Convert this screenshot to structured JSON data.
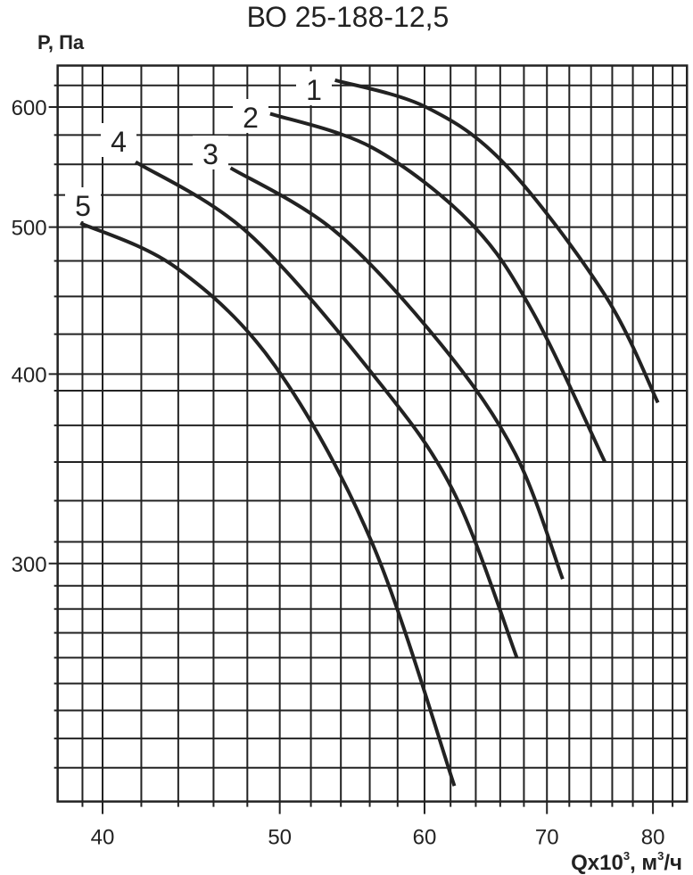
{
  "chart_data": {
    "type": "line",
    "title": "ВО 25-188-12,5",
    "xlabel": "Qx10³, м³/ч",
    "xlabel_parts": {
      "base": "Qx10",
      "exp1": "3",
      "mid": ", м",
      "exp2": "3",
      "tail": "/ч"
    },
    "ylabel": "P, Па",
    "x_scale": "log",
    "y_scale": "log",
    "xlim": [
      37.8,
      83.5
    ],
    "ylim": [
      209,
      639
    ],
    "x_ticks": [
      40,
      50,
      60,
      70,
      80
    ],
    "x_tick_labels": [
      "40",
      "50",
      "60",
      "70",
      "80"
    ],
    "y_ticks": [
      300,
      400,
      500,
      600
    ],
    "y_tick_labels": [
      "300",
      "400",
      "500",
      "600"
    ],
    "x_grid": [
      39,
      40,
      42,
      44,
      46,
      48,
      50,
      52,
      54,
      56,
      58,
      60,
      62,
      64,
      66,
      68,
      70,
      72,
      74,
      76,
      78,
      80,
      82
    ],
    "y_grid": [
      220,
      230,
      240,
      250,
      260,
      270,
      280,
      290,
      300,
      310,
      330,
      350,
      370,
      390,
      400,
      425,
      450,
      475,
      500,
      525,
      550,
      575,
      600,
      620
    ],
    "grid": true,
    "line_color": "#222222",
    "series": [
      {
        "name": "1",
        "x": [
          53.6,
          60.1,
          66.5,
          75.3,
          80.5
        ],
        "y": [
          625,
          600,
          549,
          451,
          383
        ]
      },
      {
        "name": "2",
        "x": [
          49.4,
          56.2,
          63.6,
          68.8,
          75.3
        ],
        "y": [
          594,
          564,
          503,
          439,
          350
        ]
      },
      {
        "name": "3",
        "x": [
          47.0,
          53.7,
          61.5,
          67.3,
          71.4
        ],
        "y": [
          547,
          496,
          416,
          354,
          293
        ]
      },
      {
        "name": "4",
        "x": [
          41.7,
          48.0,
          56.2,
          62.2,
          67.4
        ],
        "y": [
          552,
          496,
          400,
          335,
          260
        ]
      },
      {
        "name": "5",
        "x": [
          38.9,
          43.9,
          49.7,
          56.2,
          62.3
        ],
        "y": [
          503,
          470,
          405,
          309,
          214
        ]
      }
    ]
  }
}
